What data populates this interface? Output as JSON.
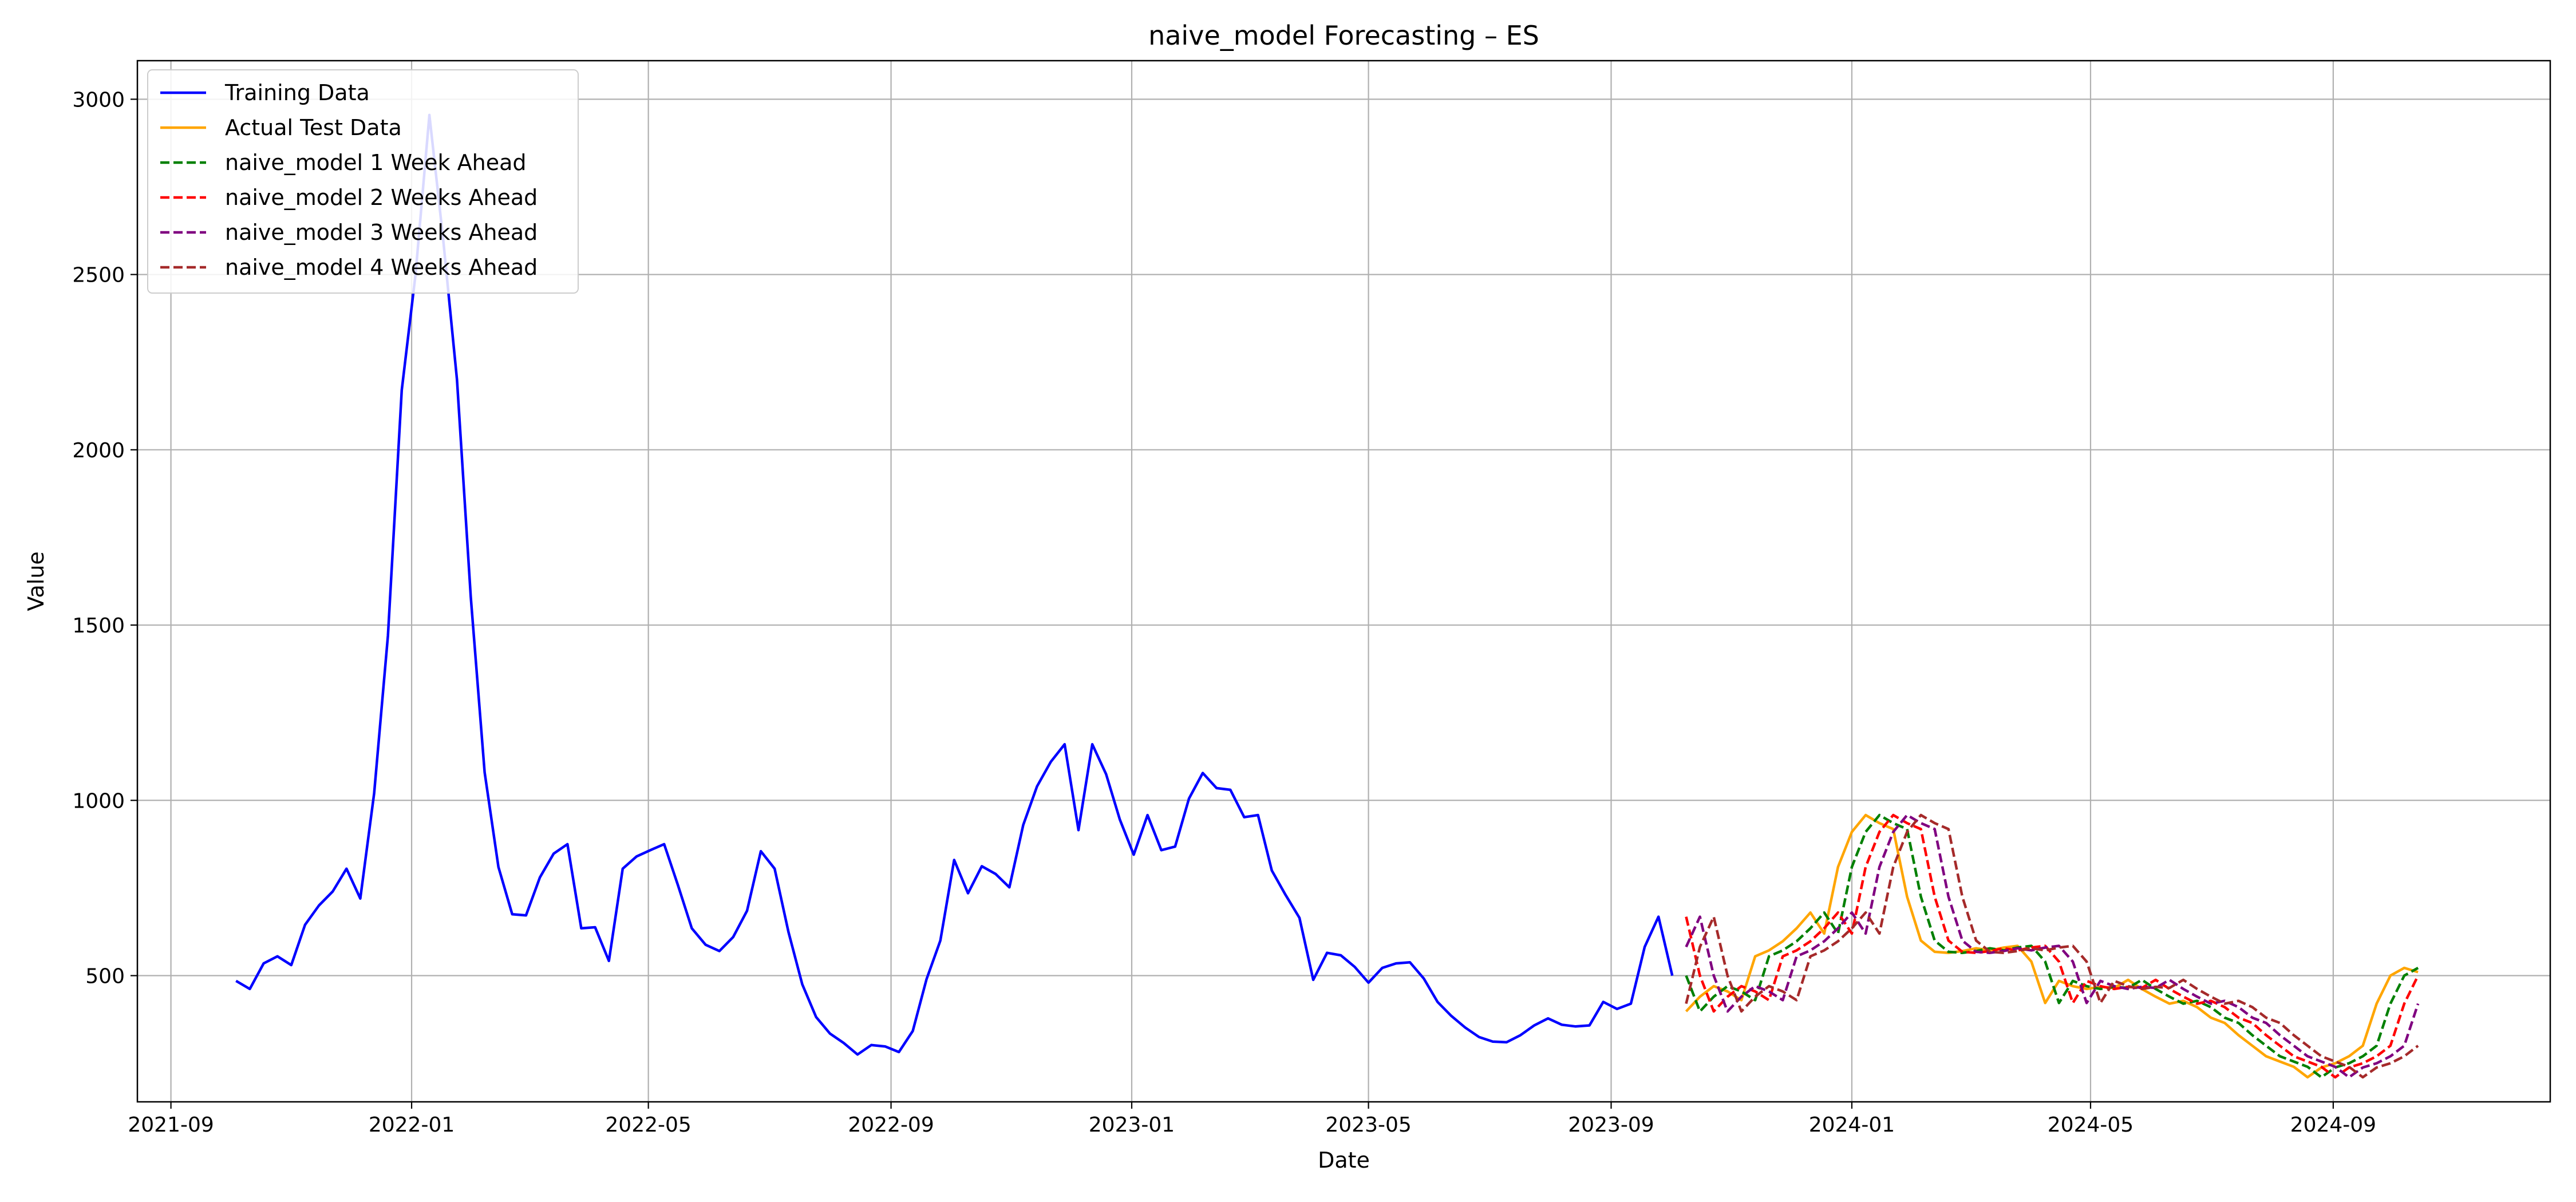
{
  "chart_data": {
    "type": "line",
    "title": "naive_model Forecasting – ES",
    "xlabel": "Date",
    "ylabel": "Value",
    "x_type": "date",
    "xlim": [
      "2021-08-15",
      "2024-12-20"
    ],
    "ylim": [
      140,
      3110
    ],
    "x_ticks": [
      "2021-09-01",
      "2022-01-01",
      "2022-05-01",
      "2022-09-01",
      "2023-01-01",
      "2023-05-01",
      "2023-09-01",
      "2024-01-01",
      "2024-05-01",
      "2024-09-01"
    ],
    "x_tick_labels": [
      "2021-09",
      "2022-01",
      "2022-05",
      "2022-09",
      "2023-01",
      "2023-05",
      "2023-09",
      "2024-01",
      "2024-05",
      "2024-09"
    ],
    "y_ticks": [
      500,
      1000,
      1500,
      2000,
      2500,
      3000
    ],
    "y_tick_labels": [
      "500",
      "1000",
      "1500",
      "2000",
      "2500",
      "3000"
    ],
    "grid": true,
    "legend_position": "top-left",
    "series": [
      {
        "name": "Training Data",
        "color": "#0000ff",
        "dash": "solid",
        "points": [
          [
            "2021-10-04",
            485
          ],
          [
            "2021-10-11",
            462
          ],
          [
            "2021-10-18",
            535
          ],
          [
            "2021-10-25",
            555
          ],
          [
            "2021-11-01",
            530
          ],
          [
            "2021-11-08",
            645
          ],
          [
            "2021-11-15",
            700
          ],
          [
            "2021-11-22",
            740
          ],
          [
            "2021-11-29",
            805
          ],
          [
            "2021-12-06",
            720
          ],
          [
            "2021-12-13",
            1020
          ],
          [
            "2021-12-20",
            1470
          ],
          [
            "2021-12-27",
            2170
          ],
          [
            "2022-01-03",
            2500
          ],
          [
            "2022-01-10",
            2955
          ],
          [
            "2022-01-17",
            2600
          ],
          [
            "2022-01-24",
            2200
          ],
          [
            "2022-01-31",
            1580
          ],
          [
            "2022-02-07",
            1080
          ],
          [
            "2022-02-14",
            810
          ],
          [
            "2022-02-21",
            675
          ],
          [
            "2022-02-28",
            672
          ],
          [
            "2022-03-07",
            780
          ],
          [
            "2022-03-14",
            848
          ],
          [
            "2022-03-21",
            875
          ],
          [
            "2022-03-28",
            635
          ],
          [
            "2022-04-04",
            638
          ],
          [
            "2022-04-11",
            542
          ],
          [
            "2022-04-18",
            805
          ],
          [
            "2022-04-25",
            840
          ],
          [
            "2022-05-02",
            858
          ],
          [
            "2022-05-09",
            875
          ],
          [
            "2022-05-16",
            758
          ],
          [
            "2022-05-23",
            635
          ],
          [
            "2022-05-30",
            588
          ],
          [
            "2022-06-06",
            570
          ],
          [
            "2022-06-13",
            610
          ],
          [
            "2022-06-20",
            685
          ],
          [
            "2022-06-27",
            855
          ],
          [
            "2022-07-04",
            805
          ],
          [
            "2022-07-11",
            625
          ],
          [
            "2022-07-18",
            475
          ],
          [
            "2022-07-25",
            382
          ],
          [
            "2022-08-01",
            335
          ],
          [
            "2022-08-08",
            308
          ],
          [
            "2022-08-15",
            275
          ],
          [
            "2022-08-22",
            302
          ],
          [
            "2022-08-29",
            298
          ],
          [
            "2022-09-05",
            282
          ],
          [
            "2022-09-12",
            342
          ],
          [
            "2022-09-19",
            490
          ],
          [
            "2022-09-26",
            600
          ],
          [
            "2022-10-03",
            830
          ],
          [
            "2022-10-10",
            735
          ],
          [
            "2022-10-17",
            812
          ],
          [
            "2022-10-24",
            790
          ],
          [
            "2022-10-31",
            752
          ],
          [
            "2022-11-07",
            930
          ],
          [
            "2022-11-14",
            1040
          ],
          [
            "2022-11-21",
            1110
          ],
          [
            "2022-11-28",
            1160
          ],
          [
            "2022-12-05",
            915
          ],
          [
            "2022-12-12",
            1160
          ],
          [
            "2022-12-19",
            1075
          ],
          [
            "2022-12-26",
            945
          ],
          [
            "2023-01-02",
            845
          ],
          [
            "2023-01-09",
            958
          ],
          [
            "2023-01-16",
            858
          ],
          [
            "2023-01-23",
            868
          ],
          [
            "2023-01-30",
            1005
          ],
          [
            "2023-02-06",
            1078
          ],
          [
            "2023-02-13",
            1035
          ],
          [
            "2023-02-20",
            1030
          ],
          [
            "2023-02-27",
            952
          ],
          [
            "2023-03-06",
            958
          ],
          [
            "2023-03-13",
            800
          ],
          [
            "2023-03-20",
            730
          ],
          [
            "2023-03-27",
            665
          ],
          [
            "2023-04-03",
            488
          ],
          [
            "2023-04-10",
            565
          ],
          [
            "2023-04-17",
            558
          ],
          [
            "2023-04-24",
            525
          ],
          [
            "2023-05-01",
            480
          ],
          [
            "2023-05-08",
            522
          ],
          [
            "2023-05-15",
            535
          ],
          [
            "2023-05-22",
            538
          ],
          [
            "2023-05-29",
            492
          ],
          [
            "2023-06-05",
            425
          ],
          [
            "2023-06-12",
            385
          ],
          [
            "2023-06-19",
            352
          ],
          [
            "2023-06-26",
            325
          ],
          [
            "2023-07-03",
            312
          ],
          [
            "2023-07-10",
            310
          ],
          [
            "2023-07-17",
            330
          ],
          [
            "2023-07-24",
            358
          ],
          [
            "2023-07-31",
            378
          ],
          [
            "2023-08-07",
            360
          ],
          [
            "2023-08-14",
            355
          ],
          [
            "2023-08-21",
            358
          ],
          [
            "2023-08-28",
            425
          ],
          [
            "2023-09-04",
            405
          ],
          [
            "2023-09-11",
            420
          ],
          [
            "2023-09-18",
            582
          ],
          [
            "2023-09-25",
            668
          ],
          [
            "2023-10-02",
            500
          ]
        ]
      },
      {
        "name": "Actual Test Data",
        "color": "#ffa500",
        "dash": "solid",
        "points": [
          [
            "2023-10-09",
            398
          ],
          [
            "2023-10-16",
            440
          ],
          [
            "2023-10-23",
            470
          ],
          [
            "2023-10-30",
            455
          ],
          [
            "2023-11-06",
            430
          ],
          [
            "2023-11-13",
            555
          ],
          [
            "2023-11-20",
            572
          ],
          [
            "2023-11-27",
            598
          ],
          [
            "2023-12-04",
            635
          ],
          [
            "2023-12-11",
            680
          ],
          [
            "2023-12-18",
            620
          ],
          [
            "2023-12-25",
            810
          ],
          [
            "2024-01-01",
            910
          ],
          [
            "2024-01-08",
            958
          ],
          [
            "2024-01-15",
            935
          ],
          [
            "2024-01-22",
            918
          ],
          [
            "2024-01-29",
            725
          ],
          [
            "2024-02-05",
            600
          ],
          [
            "2024-02-12",
            568
          ],
          [
            "2024-02-19",
            565
          ],
          [
            "2024-02-26",
            570
          ],
          [
            "2024-03-04",
            578
          ],
          [
            "2024-03-11",
            572
          ],
          [
            "2024-03-18",
            580
          ],
          [
            "2024-03-25",
            585
          ],
          [
            "2024-04-01",
            540
          ],
          [
            "2024-04-08",
            422
          ],
          [
            "2024-04-15",
            485
          ],
          [
            "2024-04-22",
            470
          ],
          [
            "2024-04-29",
            462
          ],
          [
            "2024-05-06",
            468
          ],
          [
            "2024-05-13",
            465
          ],
          [
            "2024-05-20",
            488
          ],
          [
            "2024-05-27",
            462
          ],
          [
            "2024-06-03",
            440
          ],
          [
            "2024-06-10",
            420
          ],
          [
            "2024-06-17",
            428
          ],
          [
            "2024-06-24",
            410
          ],
          [
            "2024-07-01",
            380
          ],
          [
            "2024-07-08",
            365
          ],
          [
            "2024-07-15",
            330
          ],
          [
            "2024-07-22",
            300
          ],
          [
            "2024-07-29",
            270
          ],
          [
            "2024-08-05",
            255
          ],
          [
            "2024-08-12",
            240
          ],
          [
            "2024-08-19",
            210
          ],
          [
            "2024-08-26",
            238
          ],
          [
            "2024-09-02",
            250
          ],
          [
            "2024-09-09",
            270
          ],
          [
            "2024-09-16",
            300
          ],
          [
            "2024-09-23",
            420
          ],
          [
            "2024-09-30",
            500
          ],
          [
            "2024-10-07",
            522
          ],
          [
            "2024-10-14",
            510
          ]
        ]
      },
      {
        "name": "naive_model 1 Week Ahead",
        "color": "#008000",
        "dash": "dashed",
        "shift_weeks": 1
      },
      {
        "name": "naive_model 2 Weeks Ahead",
        "color": "#ff0000",
        "dash": "dashed",
        "shift_weeks": 2
      },
      {
        "name": "naive_model 3 Weeks Ahead",
        "color": "#800080",
        "dash": "dashed",
        "shift_weeks": 3
      },
      {
        "name": "naive_model 4 Weeks Ahead",
        "color": "#a52a2a",
        "dash": "dashed",
        "shift_weeks": 4
      }
    ]
  }
}
